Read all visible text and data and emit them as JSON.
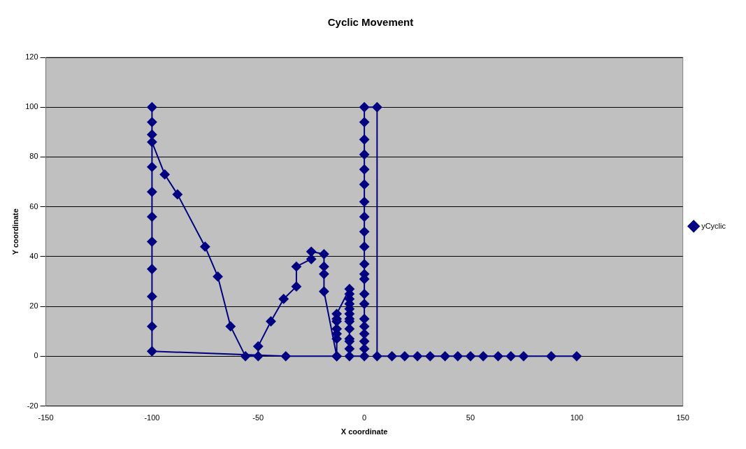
{
  "chart_data": {
    "type": "line",
    "title": "Cyclic Movement",
    "xlabel": "X coordinate",
    "ylabel": "Y coordinate",
    "xlim": [
      -150,
      150
    ],
    "xticks": [
      -150,
      -100,
      -50,
      0,
      50,
      100,
      150
    ],
    "ylim": [
      -20,
      120
    ],
    "yticks": [
      -20,
      0,
      20,
      40,
      60,
      80,
      100,
      120
    ],
    "grid": "y",
    "legend": "right",
    "marker": "diamond",
    "line_style": "solid",
    "series": [
      {
        "name": "yCyclic",
        "color": "#000080",
        "x": [
          100,
          88,
          75,
          69,
          63,
          56,
          50,
          44,
          38,
          31,
          25,
          19,
          13,
          6,
          6,
          0,
          0,
          0,
          0,
          0,
          0,
          0,
          0,
          0,
          0,
          0,
          0,
          0,
          0,
          0,
          0,
          0,
          0,
          0,
          0,
          0,
          -7,
          -7,
          -7,
          -7,
          -7,
          -7,
          -7,
          -7,
          -7,
          -7,
          -7,
          -7,
          -7,
          -13,
          -13,
          -13,
          -13,
          -13,
          -13,
          -13,
          -19,
          -19,
          -19,
          -19,
          -25,
          -25,
          -32,
          -32,
          -38,
          -44,
          -50,
          -50,
          -56,
          -63,
          -69,
          -75,
          -88,
          -94,
          -100,
          -100,
          -100,
          -100,
          -100,
          -100,
          -100,
          -100,
          -100,
          -100,
          -100,
          -100,
          -37,
          -13
        ],
        "values": [
          0,
          0,
          0,
          0,
          0,
          0,
          0,
          0,
          0,
          0,
          0,
          0,
          0,
          0,
          100,
          100,
          94,
          87,
          81,
          75,
          69,
          62,
          56,
          50,
          44,
          37,
          33,
          31,
          25,
          21,
          15,
          12,
          9,
          6,
          3,
          0,
          0,
          3,
          6,
          7,
          11,
          14,
          15,
          17,
          19,
          21,
          23,
          25,
          27,
          17,
          15,
          14,
          11,
          9,
          7,
          0,
          26,
          33,
          36,
          41,
          42,
          39,
          36,
          28,
          23,
          14,
          4,
          0,
          0,
          12,
          32,
          44,
          65,
          73,
          86,
          100,
          94,
          89,
          76,
          66,
          56,
          46,
          35,
          24,
          12,
          2,
          0,
          0
        ]
      }
    ]
  }
}
